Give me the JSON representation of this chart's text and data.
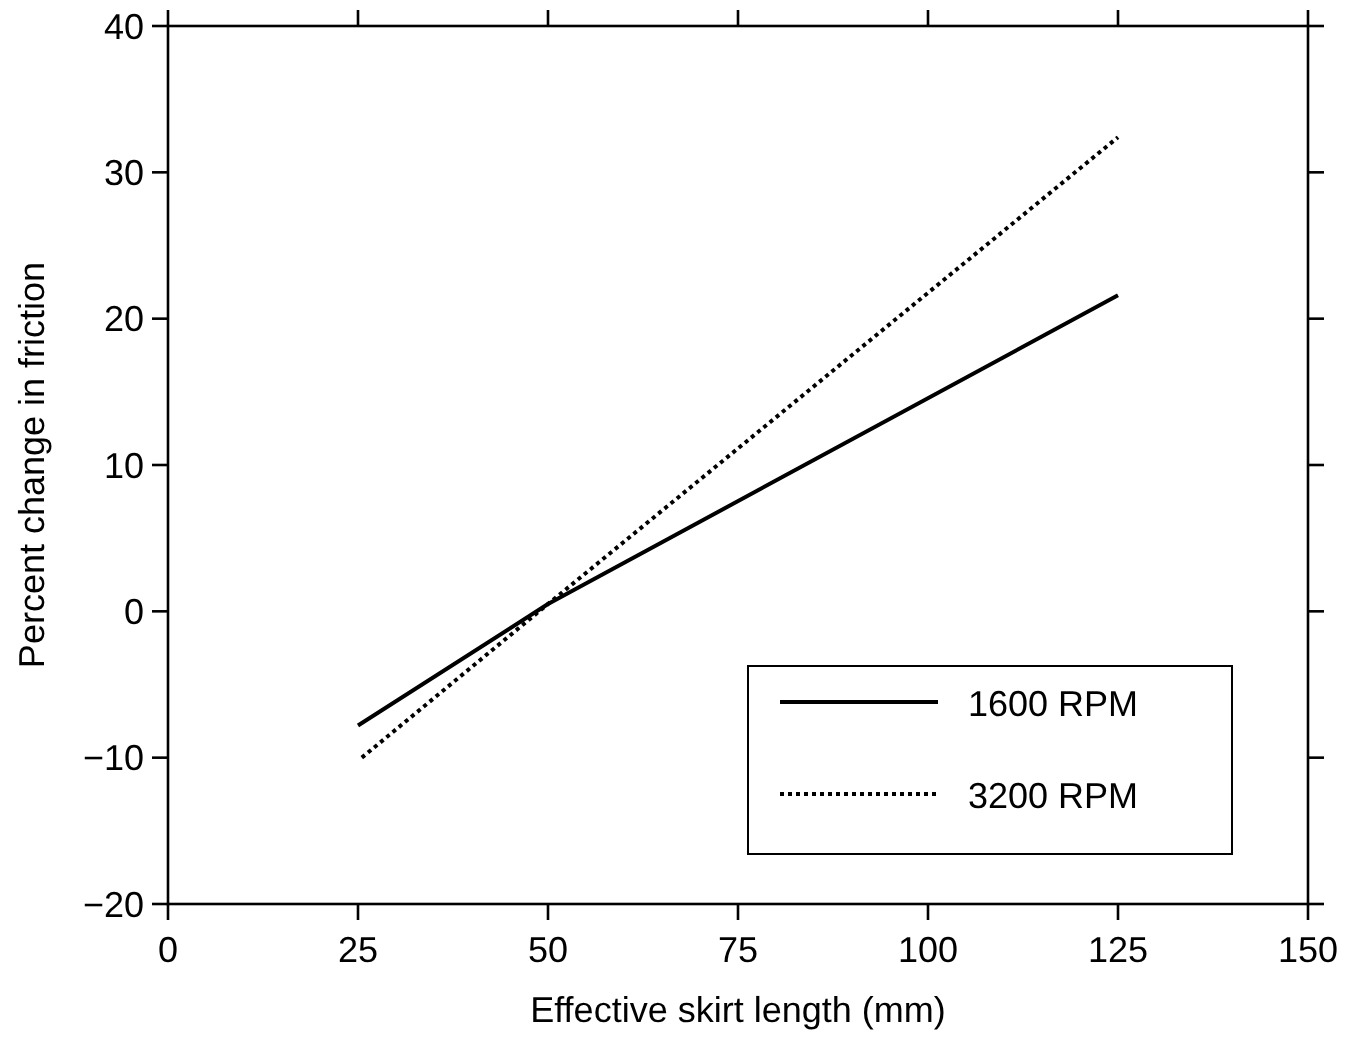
{
  "chart_data": {
    "type": "line",
    "xlabel": "Effective skirt length (mm)",
    "ylabel": "Percent change in friction",
    "xlim": [
      0,
      150
    ],
    "xticks": [
      0,
      25,
      50,
      75,
      100,
      125,
      150
    ],
    "ylim": [
      -20,
      40
    ],
    "yticks": [
      {
        "value": -20,
        "label": "−20"
      },
      {
        "value": -10,
        "label": "−10"
      },
      0,
      10,
      20,
      30,
      40
    ],
    "legend": "bottom right",
    "grid": false,
    "series": [
      {
        "name": "1600 RPM",
        "color": "#000000",
        "line_style": "solid",
        "x": [
          25,
          50,
          125
        ],
        "values": [
          -7.8,
          0.5,
          21.6
        ]
      },
      {
        "name": "3200 RPM",
        "color": "#000000",
        "line_style": "dotted",
        "x": [
          25.5,
          50,
          125
        ],
        "values": [
          -10,
          0.5,
          32.4
        ]
      }
    ]
  }
}
